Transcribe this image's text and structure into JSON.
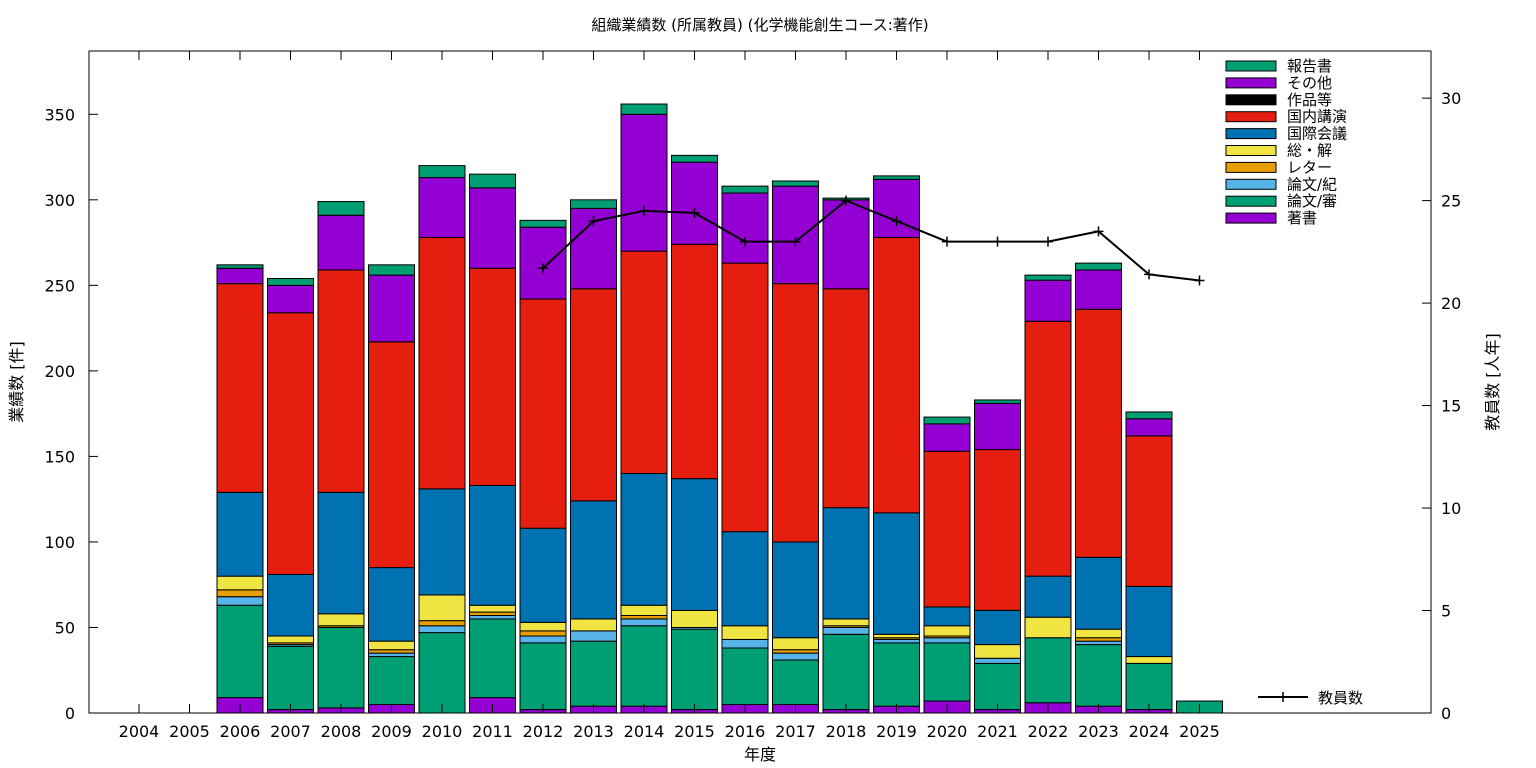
{
  "chart_data": {
    "type": "bar",
    "title": "組織業績数 (所属教員) (化学機能創生コース:著作)",
    "xlabel": "年度",
    "ylabel": "業績数 [件]",
    "y2label": "教員数 [人年]",
    "ylim": [
      0,
      387
    ],
    "y2lim": [
      0,
      32.3
    ],
    "yticks": [
      0,
      50,
      100,
      150,
      200,
      250,
      300,
      350
    ],
    "y2ticks": [
      0,
      5,
      10,
      15,
      20,
      25,
      30
    ],
    "grid": false,
    "legend_position": "top-right",
    "stacked": true,
    "categories": [
      "2004",
      "2005",
      "2006",
      "2007",
      "2008",
      "2009",
      "2010",
      "2011",
      "2012",
      "2013",
      "2014",
      "2015",
      "2016",
      "2017",
      "2018",
      "2019",
      "2020",
      "2021",
      "2022",
      "2023",
      "2024",
      "2025"
    ],
    "series": [
      {
        "name": "著書",
        "color": "#9400d3",
        "values": [
          0,
          0,
          9,
          2,
          3,
          5,
          0,
          9,
          2,
          4,
          4,
          2,
          5,
          5,
          2,
          4,
          7,
          2,
          6,
          4,
          2,
          0
        ]
      },
      {
        "name": "論文/審",
        "color": "#009e73",
        "values": [
          0,
          0,
          54,
          37,
          47,
          28,
          47,
          46,
          39,
          38,
          47,
          47,
          33,
          26,
          44,
          37,
          34,
          27,
          38,
          36,
          27,
          7
        ]
      },
      {
        "name": "論文/紀",
        "color": "#56b4e9",
        "values": [
          0,
          0,
          5,
          1,
          0,
          2,
          4,
          2,
          4,
          6,
          4,
          1,
          5,
          4,
          4,
          2,
          3,
          3,
          0,
          2,
          0,
          0
        ]
      },
      {
        "name": "レター",
        "color": "#e69f00",
        "values": [
          0,
          0,
          4,
          1,
          1,
          2,
          3,
          2,
          3,
          0,
          2,
          0,
          0,
          2,
          1,
          1,
          1,
          0,
          0,
          2,
          0,
          0
        ]
      },
      {
        "name": "総・解",
        "color": "#f0e442",
        "values": [
          0,
          0,
          8,
          4,
          7,
          5,
          15,
          4,
          5,
          7,
          6,
          10,
          8,
          7,
          4,
          2,
          6,
          8,
          12,
          5,
          4,
          0
        ]
      },
      {
        "name": "国際会議",
        "color": "#0072b2",
        "values": [
          0,
          0,
          49,
          36,
          71,
          43,
          62,
          70,
          55,
          69,
          77,
          77,
          55,
          56,
          65,
          71,
          11,
          20,
          24,
          42,
          41,
          0
        ]
      },
      {
        "name": "国内講演",
        "color": "#e51e10",
        "values": [
          0,
          0,
          122,
          153,
          130,
          132,
          147,
          127,
          134,
          124,
          130,
          137,
          157,
          151,
          128,
          161,
          91,
          94,
          149,
          145,
          88,
          0
        ]
      },
      {
        "name": "作品等",
        "color": "#000000",
        "values": [
          0,
          0,
          0,
          0,
          0,
          0,
          0,
          0,
          0,
          0,
          0,
          0,
          0,
          0,
          0,
          0,
          0,
          0,
          0,
          0,
          0,
          0
        ]
      },
      {
        "name": "その他",
        "color": "#9400d3",
        "values": [
          0,
          0,
          9,
          16,
          32,
          39,
          35,
          47,
          42,
          47,
          80,
          48,
          41,
          57,
          52,
          34,
          16,
          27,
          24,
          23,
          10,
          0
        ]
      },
      {
        "name": "報告書",
        "color": "#009e73",
        "values": [
          0,
          0,
          2,
          4,
          8,
          6,
          7,
          8,
          4,
          5,
          6,
          4,
          4,
          3,
          1,
          2,
          4,
          2,
          3,
          4,
          4,
          0
        ]
      }
    ],
    "line_series": {
      "name": "教員数",
      "color": "#000000",
      "axis": "right",
      "x": [
        "2012",
        "2013",
        "2014",
        "2015",
        "2016",
        "2017",
        "2018",
        "2019",
        "2020",
        "2021",
        "2022",
        "2023",
        "2024",
        "2025"
      ],
      "values": [
        21.7,
        24.0,
        24.5,
        24.4,
        23.0,
        23.0,
        25.0,
        24.0,
        23.0,
        23.0,
        23.0,
        23.5,
        21.4,
        21.1
      ]
    }
  }
}
